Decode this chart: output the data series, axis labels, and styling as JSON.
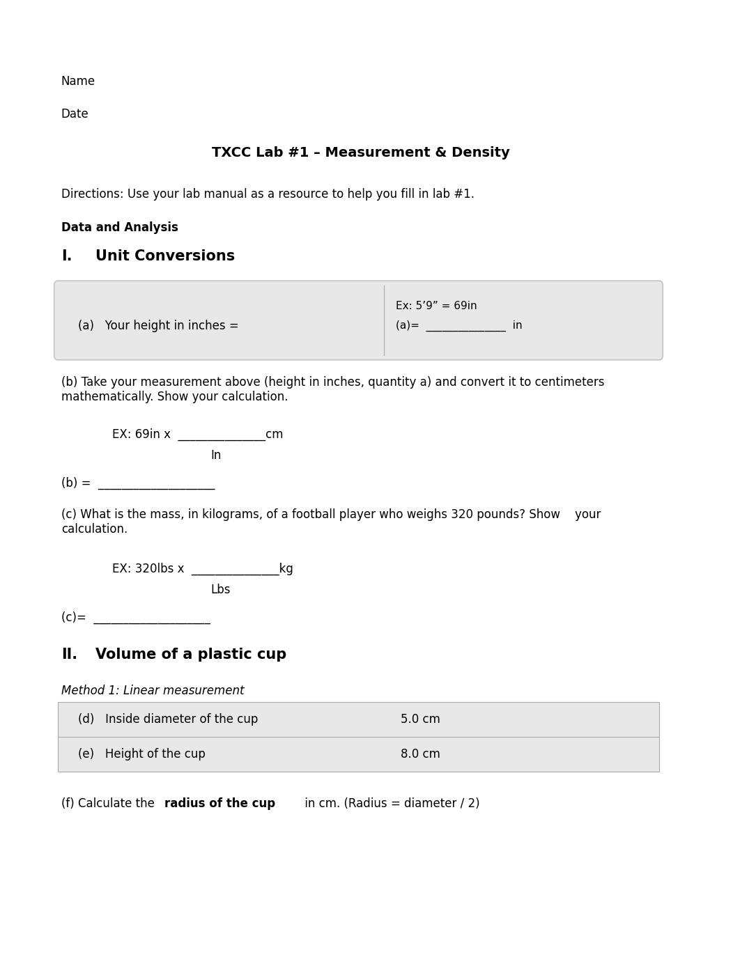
{
  "bg_color": "#ffffff",
  "name_label": "Name",
  "date_label": "Date",
  "title": "TXCC Lab #1 – Measurement & Density",
  "directions": "Directions: Use your lab manual as a resource to help you fill in lab #1.",
  "data_analysis": "Data and Analysis",
  "section1_num": "I.",
  "section1_title": "Unit Conversions",
  "box1_left_label": "(a)   Your height in inches =",
  "box1_right_ex": "Ex: 5’9” = 69in",
  "box1_right_label": "(a)=  _______________  in",
  "box_bg": "#e8e8e8",
  "box_border": "#bbbbbb",
  "partb_intro": "(b) Take your measurement above (height in inches, quantity a) and convert it to centimeters\nmathematically. Show your calculation.",
  "partb_ex_line1": "EX: 69in x  _______________cm",
  "partb_ex_line2": "In",
  "partb_answer": "(b) =  ____________________",
  "partc_intro": "(c) What is the mass, in kilograms, of a football player who weighs 320 pounds? Show    your\ncalculation.",
  "partc_ex_line1": "EX: 320lbs x  _______________kg",
  "partc_ex_line2": "Lbs",
  "partc_answer": "(c)=  ____________________",
  "section2_num": "II.",
  "section2_title": "Volume of a plastic cup",
  "method1_label": "Method 1: Linear measurement",
  "table_row1_left": "(d)   Inside diameter of the cup",
  "table_row1_right": "5.0 cm",
  "table_row2_left": "(e)   Height of the cup",
  "table_row2_right": "8.0 cm",
  "partf_normal1": "(f) Calculate the ",
  "partf_bold": "radius of the cup",
  "partf_normal2": " in cm. (Radius = diameter / 2)"
}
